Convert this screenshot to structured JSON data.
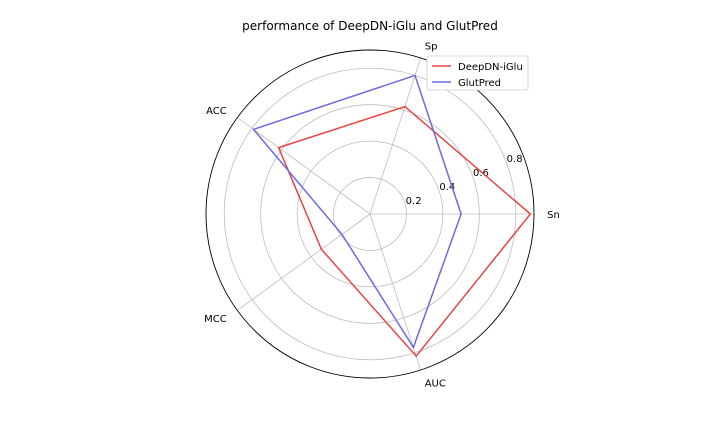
{
  "chart_data": {
    "type": "radar",
    "title": "performance of DeepDN-iGlu and GlutPred",
    "categories": [
      "Sn",
      "Sp",
      "ACC",
      "MCC",
      "AUC"
    ],
    "radial_ticks": [
      "0.2",
      "0.4",
      "0.6",
      "0.8"
    ],
    "radial_range": [
      0,
      0.9
    ],
    "grid": true,
    "legend_position": "top-right",
    "series": [
      {
        "name": "DeepDN-iGlu",
        "color": "#e84545",
        "values": [
          0.88,
          0.62,
          0.62,
          0.33,
          0.82
        ]
      },
      {
        "name": "GlutPred",
        "color": "#6b6be0",
        "values": [
          0.5,
          0.8,
          0.79,
          0.19,
          0.77
        ]
      }
    ]
  }
}
